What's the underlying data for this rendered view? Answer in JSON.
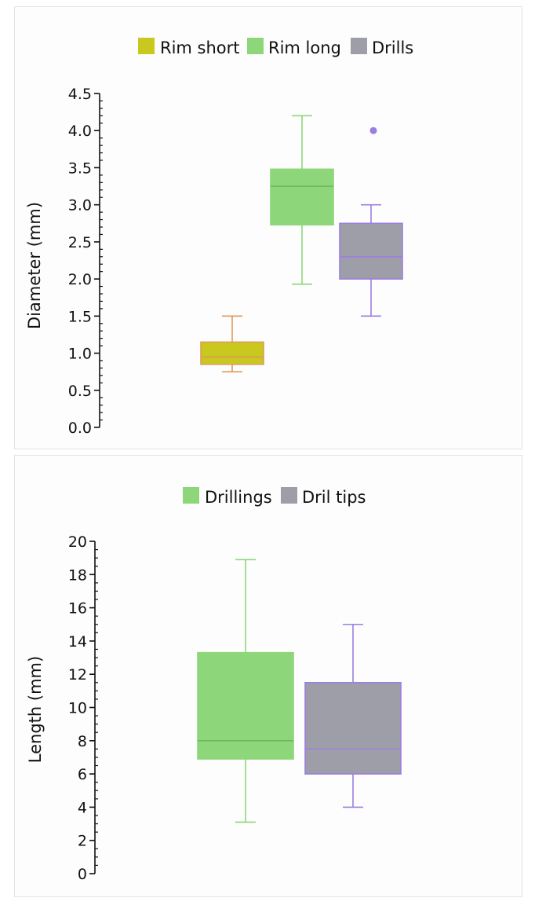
{
  "chart_data": [
    {
      "type": "box",
      "ylabel": "Diameter (mm)",
      "ylim": [
        0,
        4.5
      ],
      "yticks": [
        "0.0",
        "0.5",
        "1.0",
        "1.5",
        "2.0",
        "2.5",
        "3.0",
        "3.5",
        "4.0",
        "4.5"
      ],
      "minor_ticks_per_major": 5,
      "legend_placement": "top-center",
      "series": [
        {
          "name": "Rim short",
          "fill": "#c8c81e",
          "stroke": "#e09a5a",
          "median_color": "#e09a5a",
          "min": 0.75,
          "q1": 0.85,
          "median": 0.95,
          "q3": 1.15,
          "max": 1.5,
          "outliers": []
        },
        {
          "name": "Rim long",
          "fill": "#8ed67a",
          "stroke": "#8ed67a",
          "median_color": "#6fb85c",
          "min": 1.93,
          "q1": 2.73,
          "median": 3.25,
          "q3": 3.48,
          "max": 4.2,
          "outliers": []
        },
        {
          "name": "Drills",
          "fill": "#9e9ea8",
          "stroke": "#9b7fe0",
          "median_color": "#9b7fe0",
          "min": 1.5,
          "q1": 2.0,
          "median": 2.3,
          "q3": 2.75,
          "max": 3.0,
          "outliers": [
            4.0
          ]
        }
      ]
    },
    {
      "type": "box",
      "ylabel": "Length (mm)",
      "ylim": [
        0,
        20
      ],
      "yticks": [
        "0",
        "2",
        "4",
        "6",
        "8",
        "10",
        "12",
        "14",
        "16",
        "18",
        "20"
      ],
      "minor_ticks_per_major": 4,
      "legend_placement": "top-center",
      "series": [
        {
          "name": "Drillings",
          "fill": "#8ed67a",
          "stroke": "#8ed67a",
          "median_color": "#6fb85c",
          "min": 3.1,
          "q1": 6.9,
          "median": 8.0,
          "q3": 13.3,
          "max": 18.9,
          "outliers": []
        },
        {
          "name": "Dril tips",
          "fill": "#9e9ea8",
          "stroke": "#9b7fe0",
          "median_color": "#9b7fe0",
          "min": 4.0,
          "q1": 6.0,
          "median": 7.5,
          "q3": 11.5,
          "max": 15.0,
          "outliers": []
        }
      ]
    }
  ]
}
